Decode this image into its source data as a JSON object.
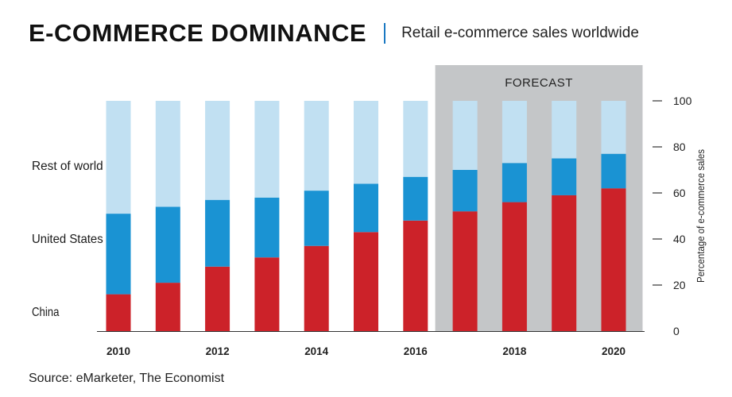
{
  "header": {
    "title": "E-COMMERCE DOMINANCE",
    "subtitle": "Retail e-commerce sales worldwide"
  },
  "source": "Source: eMarketer, The Economist",
  "chart_data": {
    "type": "bar",
    "stacked": true,
    "categories": [
      "2010",
      "2011",
      "2012",
      "2013",
      "2014",
      "2015",
      "2016",
      "2017",
      "2018",
      "2019",
      "2020"
    ],
    "x_tick_labels": [
      "2010",
      "",
      "2012",
      "",
      "2014",
      "",
      "2016",
      "",
      "2018",
      "",
      "2020"
    ],
    "series": [
      {
        "name": "China",
        "color": "#cc2229",
        "values": [
          16,
          21,
          28,
          32,
          37,
          43,
          48,
          52,
          56,
          59,
          62
        ]
      },
      {
        "name": "United States",
        "color": "#1a93d3",
        "values": [
          35,
          33,
          29,
          26,
          24,
          21,
          19,
          18,
          17,
          16,
          15
        ]
      },
      {
        "name": "Rest of world",
        "color": "#c1e0f2",
        "values": [
          49,
          46,
          43,
          42,
          39,
          36,
          33,
          30,
          27,
          25,
          23
        ]
      }
    ],
    "ylabel": "Percentage of e-commerce sales",
    "ylim": [
      0,
      100
    ],
    "y_ticks": [
      0,
      20,
      40,
      60,
      80,
      100
    ],
    "y_axis_position": "right",
    "forecast": {
      "label": "FORECAST",
      "start": "2017",
      "end": "2020"
    },
    "legend": "left, series labels aligned to bar segments"
  }
}
